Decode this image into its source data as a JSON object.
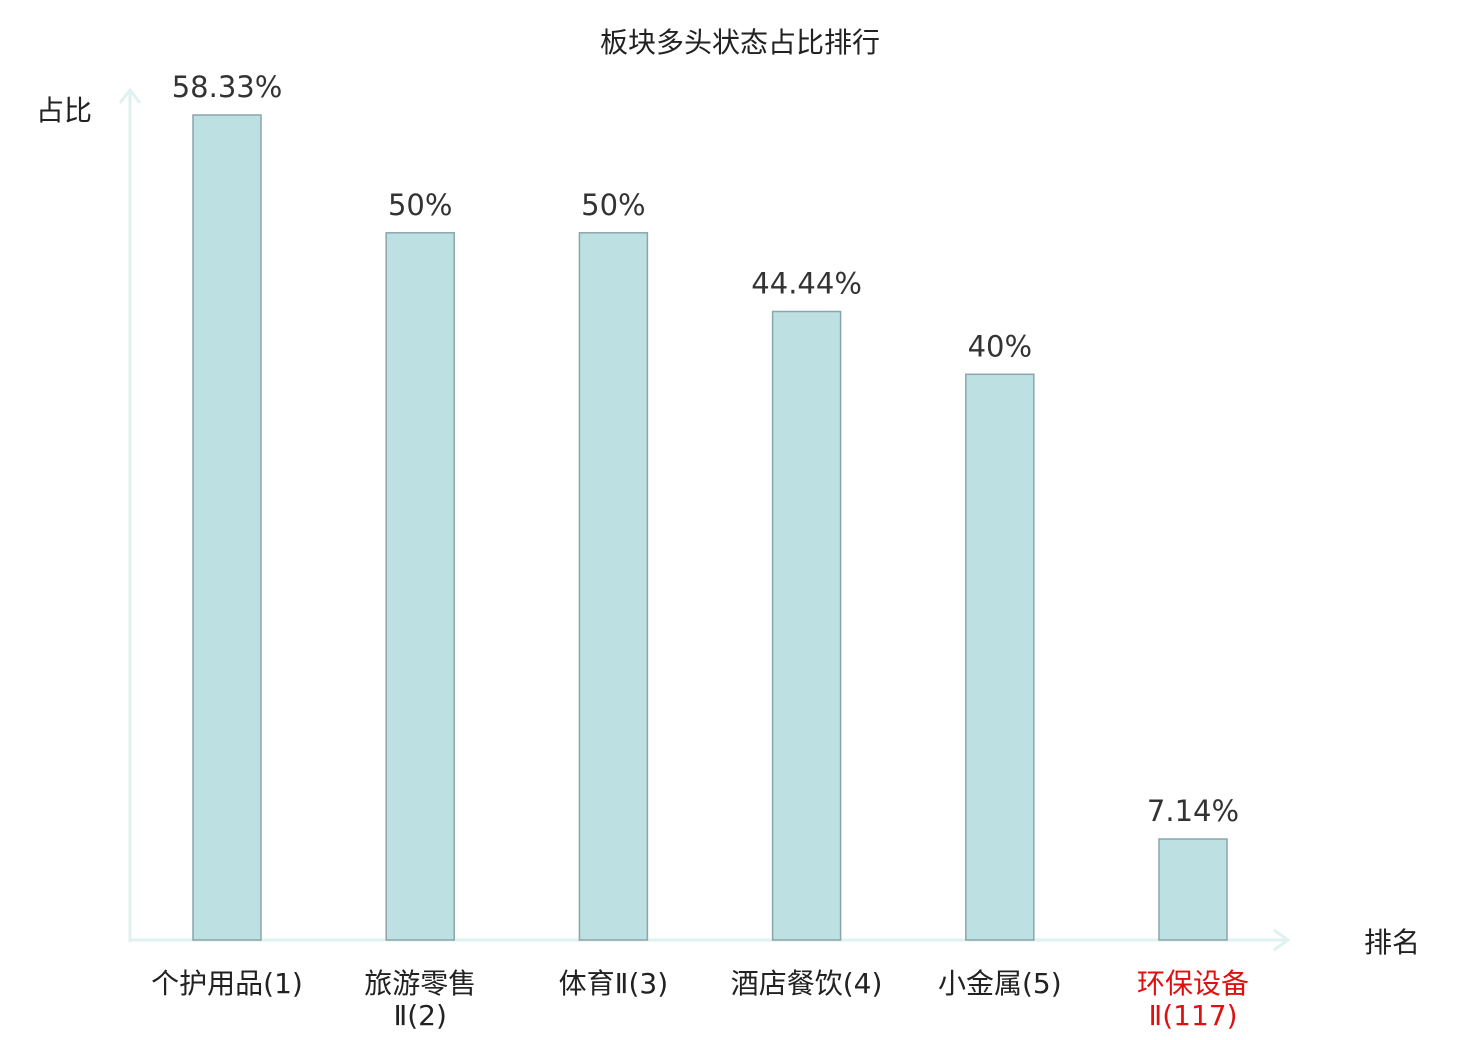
{
  "chart_data": {
    "type": "bar",
    "title": "板块多头状态占比排行",
    "ylabel": "占比",
    "xlabel": "排名",
    "categories": [
      [
        "个护用品(1)"
      ],
      [
        "旅游零售",
        "Ⅱ(2)"
      ],
      [
        "体育Ⅱ(3)"
      ],
      [
        "酒店餐饮(4)"
      ],
      [
        "小金属(5)"
      ],
      [
        "环保设备",
        "Ⅱ(117)"
      ]
    ],
    "values": [
      58.33,
      50,
      50,
      44.44,
      40,
      7.14
    ],
    "value_labels": [
      "58.33%",
      "50%",
      "50%",
      "44.44%",
      "40%",
      "7.14%"
    ],
    "highlight_index": 5,
    "ylim": [
      0,
      60
    ],
    "grid": false,
    "legend": "none",
    "colors": {
      "bar_fill": "#bde0e3",
      "bar_stroke": "#8aa6aa",
      "axis": "#dff2ef",
      "text": "#222222",
      "value_text": "#333333",
      "highlight": "#e01010"
    }
  }
}
